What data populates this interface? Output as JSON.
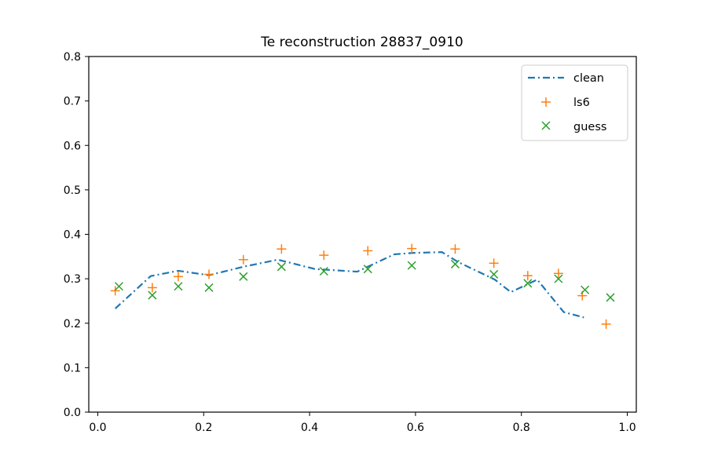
{
  "chart_data": {
    "type": "line",
    "title": "Te reconstruction 28837_0910",
    "xlabel": "",
    "ylabel": "",
    "xlim": [
      -0.017,
      1.017
    ],
    "ylim": [
      0.0,
      0.8
    ],
    "xticks": [
      {
        "value": 0.0,
        "label": "0.0"
      },
      {
        "value": 0.2,
        "label": "0.2"
      },
      {
        "value": 0.4,
        "label": "0.4"
      },
      {
        "value": 0.6,
        "label": "0.6"
      },
      {
        "value": 0.8,
        "label": "0.8"
      },
      {
        "value": 1.0,
        "label": "1.0"
      }
    ],
    "yticks": [
      {
        "value": 0.0,
        "label": "0.0"
      },
      {
        "value": 0.1,
        "label": "0.1"
      },
      {
        "value": 0.2,
        "label": "0.2"
      },
      {
        "value": 0.3,
        "label": "0.3"
      },
      {
        "value": 0.4,
        "label": "0.4"
      },
      {
        "value": 0.5,
        "label": "0.5"
      },
      {
        "value": 0.6,
        "label": "0.6"
      },
      {
        "value": 0.7,
        "label": "0.7"
      },
      {
        "value": 0.8,
        "label": "0.8"
      }
    ],
    "grid": false,
    "legend_position": "top-right",
    "series": [
      {
        "name": "clean",
        "style": "dash-dot-line",
        "color": "#1f77b4",
        "x": [
          0.033,
          0.1,
          0.152,
          0.21,
          0.275,
          0.34,
          0.41,
          0.49,
          0.56,
          0.593,
          0.65,
          0.68,
          0.75,
          0.78,
          0.83,
          0.88,
          0.918
        ],
        "y": [
          0.233,
          0.306,
          0.318,
          0.308,
          0.327,
          0.343,
          0.322,
          0.316,
          0.355,
          0.358,
          0.36,
          0.338,
          0.298,
          0.27,
          0.298,
          0.225,
          0.213
        ]
      },
      {
        "name": "ls6",
        "style": "plus-marker",
        "color": "#ff7f0e",
        "x": [
          0.033,
          0.103,
          0.152,
          0.21,
          0.275,
          0.347,
          0.427,
          0.51,
          0.593,
          0.675,
          0.748,
          0.812,
          0.87,
          0.915,
          0.96
        ],
        "y": [
          0.273,
          0.28,
          0.305,
          0.31,
          0.343,
          0.367,
          0.353,
          0.363,
          0.368,
          0.367,
          0.335,
          0.307,
          0.312,
          0.262,
          0.198
        ]
      },
      {
        "name": "guess",
        "style": "x-marker",
        "color": "#2ca02c",
        "x": [
          0.04,
          0.103,
          0.152,
          0.21,
          0.275,
          0.347,
          0.427,
          0.51,
          0.593,
          0.675,
          0.748,
          0.812,
          0.87,
          0.92,
          0.968
        ],
        "y": [
          0.283,
          0.263,
          0.283,
          0.28,
          0.305,
          0.327,
          0.317,
          0.322,
          0.33,
          0.333,
          0.31,
          0.29,
          0.3,
          0.275,
          0.258
        ]
      }
    ]
  }
}
